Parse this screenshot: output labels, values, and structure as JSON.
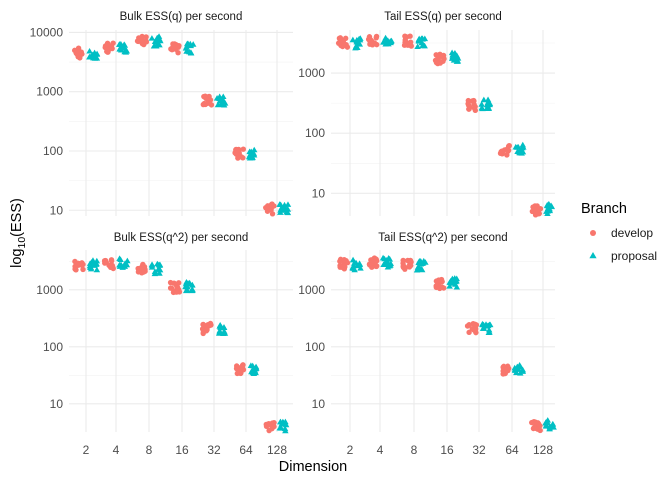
{
  "chart_data": {
    "type": "scatter",
    "xlabel": "Dimension",
    "ylabel_prefix": "log",
    "ylabel_sub": "10",
    "ylabel_suffix": "(ESS)",
    "legend": {
      "title": "Branch",
      "placement": "right",
      "entries": [
        {
          "name": "develop",
          "color": "#F8766D",
          "shape": "circle"
        },
        {
          "name": "proposal",
          "color": "#00BFC4",
          "shape": "triangle"
        }
      ]
    },
    "x_categories": [
      "2",
      "4",
      "8",
      "16",
      "32",
      "64",
      "128"
    ],
    "y_scale": "log10",
    "y_ticks": [
      10,
      100,
      1000,
      10000
    ],
    "grid": true,
    "panels": [
      {
        "title": "Bulk ESS(q) per second",
        "ylim": [
          8,
          11000
        ],
        "tick_labels": [
          "10",
          "100",
          "1000",
          "10000"
        ],
        "series": [
          {
            "name": "develop",
            "values": [
              4500,
              5600,
              7400,
              5300,
              720,
              90,
              10.5
            ]
          },
          {
            "name": "proposal",
            "values": [
              4200,
              5500,
              7000,
              5300,
              700,
              88,
              10.8
            ]
          }
        ]
      },
      {
        "title": "Tail ESS(q) per second",
        "ylim": [
          4.2,
          5200
        ],
        "tick_labels": [
          "10",
          "100",
          "1000"
        ],
        "series": [
          {
            "name": "develop",
            "values": [
              3200,
              3500,
              3400,
              1700,
              290,
              52,
              5.2
            ]
          },
          {
            "name": "proposal",
            "values": [
              3100,
              3400,
              3200,
              1800,
              300,
              53,
              5.4
            ]
          }
        ]
      },
      {
        "title": "Bulk ESS(q^2) per second",
        "ylim": [
          3.2,
          5000
        ],
        "tick_labels": [
          "10",
          "100",
          "1000"
        ],
        "series": [
          {
            "name": "develop",
            "values": [
              2700,
              2800,
              2300,
              1100,
              210,
              40,
              3.9
            ]
          },
          {
            "name": "proposal",
            "values": [
              2700,
              2900,
              2300,
              1150,
              200,
              40,
              4.0
            ]
          }
        ]
      },
      {
        "title": "Tail ESS(q^2) per second",
        "ylim": [
          3.2,
          5000
        ],
        "tick_labels": [
          "10",
          "100",
          "1000"
        ],
        "series": [
          {
            "name": "develop",
            "values": [
              2800,
              3000,
              2800,
              1250,
              210,
              40,
              4.0
            ]
          },
          {
            "name": "proposal",
            "values": [
              2700,
              3000,
              2600,
              1300,
              210,
              41,
              4.2
            ]
          }
        ]
      }
    ]
  }
}
